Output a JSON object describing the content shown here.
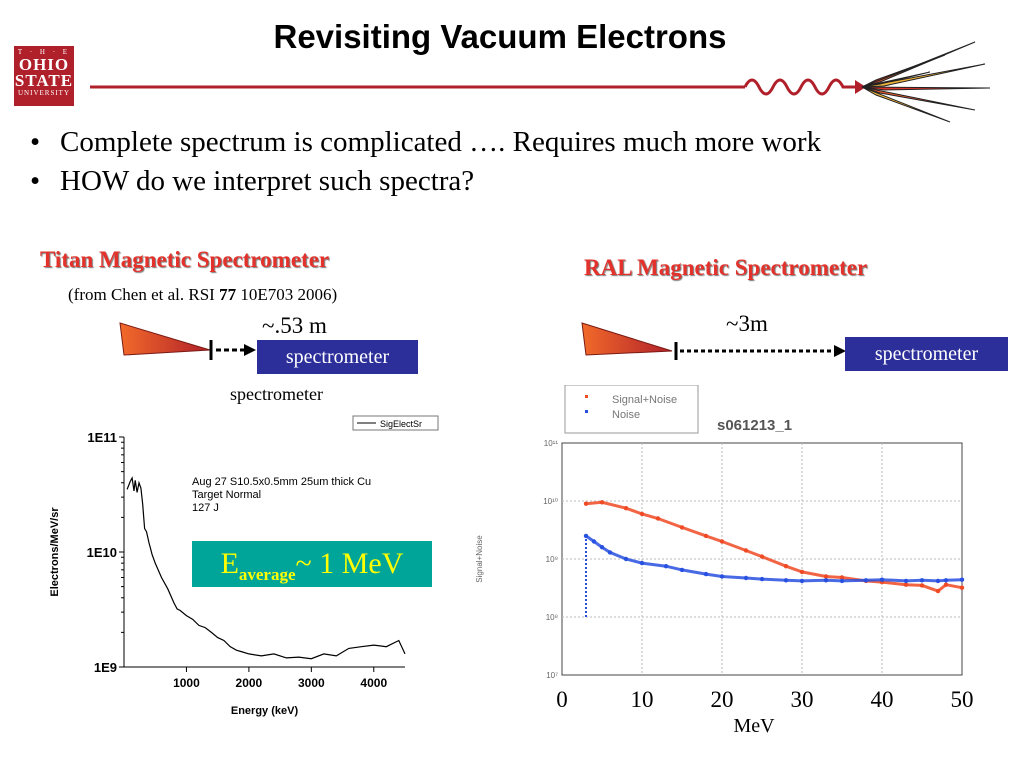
{
  "slide": {
    "title": "Revisiting Vacuum Electrons",
    "logo": {
      "line1": "T · H · E",
      "line2": "OHIO",
      "line3": "STATE",
      "line4": "UNIVERSITY"
    },
    "bullets": [
      "Complete spectrum is complicated …. Requires much more work",
      "HOW do we interpret such spectra?"
    ],
    "colors": {
      "accent_red": "#e3322b",
      "box_blue": "#2c2f9a",
      "teal_box": "#00a59a"
    }
  },
  "titan": {
    "heading": "Titan Magnetic Spectrometer",
    "citation_pre": "(from Chen et al. RSI ",
    "citation_bold": "77",
    "citation_post": " 10E703 2006)",
    "distance": "~.53 m",
    "box_label": "spectrometer",
    "caption": "spectrometer"
  },
  "ral": {
    "heading": "RAL Magnetic Spectrometer",
    "distance": "~3m",
    "box_label": "spectrometer"
  },
  "chart_data": [
    {
      "type": "line",
      "legend": [
        "SigElectSr"
      ],
      "legend_position": "top-right",
      "xlabel": "Energy (keV)",
      "ylabel": "Electrons/MeV/sr",
      "y_scale": "log",
      "xlim": [
        0,
        4500
      ],
      "ylim": [
        1000000000.0,
        100000000000.0
      ],
      "x_ticks": [
        "1000",
        "2000",
        "3000",
        "4000"
      ],
      "y_ticks": [
        "1E9",
        "1E10",
        "1E11"
      ],
      "annotation_lines": [
        "Aug 27 S10.5x0.5mm 25um thick Cu",
        "Target Normal",
        "127 J"
      ],
      "average_label": {
        "e": "E",
        "sub": "average",
        "rest": "~ 1 MeV"
      },
      "series": [
        {
          "name": "SigElectSr",
          "color": "#000000",
          "x": [
            50,
            100,
            130,
            160,
            180,
            210,
            240,
            270,
            300,
            330,
            360,
            380,
            400,
            420,
            450,
            500,
            600,
            700,
            800,
            850,
            900,
            1000,
            1100,
            1200,
            1300,
            1400,
            1500,
            1600,
            1700,
            1800,
            1900,
            2000,
            2200,
            2400,
            2600,
            2800,
            3000,
            3200,
            3400,
            3600,
            3800,
            4000,
            4200,
            4400,
            4500
          ],
          "y": [
            35000000000.0,
            41000000000.0,
            44000000000.0,
            34000000000.0,
            42000000000.0,
            33000000000.0,
            40000000000.0,
            36000000000.0,
            26000000000.0,
            16000000000.0,
            15000000000.0,
            13500000000.0,
            12000000000.0,
            11000000000.0,
            9500000000.0,
            8000000000.0,
            6000000000.0,
            4800000000.0,
            3600000000.0,
            3200000000.0,
            3100000000.0,
            2800000000.0,
            2600000000.0,
            2300000000.0,
            2200000000.0,
            2000000000.0,
            1800000000.0,
            1700000000.0,
            1500000000.0,
            1400000000.0,
            1350000000.0,
            1300000000.0,
            1250000000.0,
            1300000000.0,
            1200000000.0,
            1220000000.0,
            1180000000.0,
            1300000000.0,
            1250000000.0,
            1450000000.0,
            1500000000.0,
            1550000000.0,
            1500000000.0,
            1700000000.0,
            1300000000.0
          ]
        }
      ]
    },
    {
      "type": "scatter",
      "title": "s061213_1",
      "legend": [
        "Signal+Noise",
        "Noise"
      ],
      "legend_position": "top-left",
      "xlabel": "MeV",
      "ylabel": "Signal+Noise",
      "y_scale": "log",
      "grid": true,
      "xlim": [
        0,
        50
      ],
      "ylim": [
        10000000.0,
        100000000000.0
      ],
      "x_ticks": [
        "0",
        "10",
        "20",
        "30",
        "40",
        "50"
      ],
      "y_ticks": [
        "10⁷",
        "10⁸",
        "10⁹",
        "10¹⁰",
        "10¹¹"
      ],
      "series": [
        {
          "name": "Signal+Noise",
          "color": "#ef4a24",
          "x": [
            3,
            5,
            8,
            10,
            12,
            15,
            18,
            20,
            23,
            25,
            28,
            30,
            33,
            35,
            38,
            40,
            43,
            45,
            47,
            48,
            50
          ],
          "y": [
            9000000000.0,
            9500000000.0,
            7500000000.0,
            6000000000.0,
            5000000000.0,
            3500000000.0,
            2500000000.0,
            2000000000.0,
            1400000000.0,
            1100000000.0,
            750000000.0,
            600000000.0,
            500000000.0,
            480000000.0,
            420000000.0,
            400000000.0,
            360000000.0,
            350000000.0,
            280000000.0,
            360000000.0,
            320000000.0
          ]
        },
        {
          "name": "Noise",
          "color": "#2850e0",
          "x": [
            3,
            4,
            5,
            6,
            8,
            10,
            13,
            15,
            18,
            20,
            23,
            25,
            28,
            30,
            33,
            35,
            38,
            40,
            43,
            45,
            47,
            48,
            50
          ],
          "y": [
            2500000000.0,
            2000000000.0,
            1600000000.0,
            1300000000.0,
            1000000000.0,
            850000000.0,
            750000000.0,
            650000000.0,
            550000000.0,
            500000000.0,
            470000000.0,
            450000000.0,
            430000000.0,
            420000000.0,
            430000000.0,
            420000000.0,
            430000000.0,
            440000000.0,
            420000000.0,
            430000000.0,
            420000000.0,
            430000000.0,
            440000000.0
          ]
        }
      ]
    }
  ]
}
